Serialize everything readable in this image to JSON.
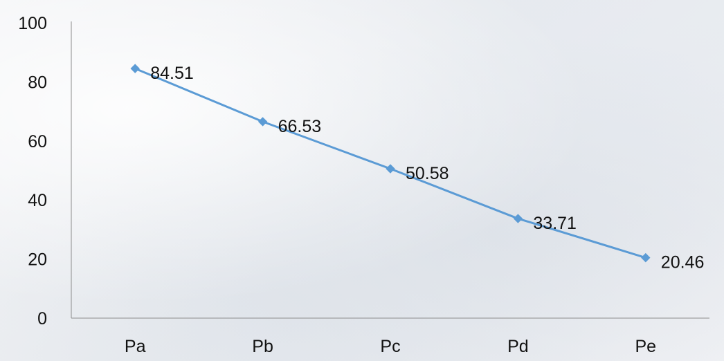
{
  "chart_data": {
    "type": "line",
    "categories": [
      "Pa",
      "Pb",
      "Pc",
      "Pd",
      "Pe"
    ],
    "values": [
      84.51,
      66.53,
      50.58,
      33.71,
      20.46
    ],
    "data_labels": [
      "84.51",
      "66.53",
      "50.58",
      "33.71",
      "20.46"
    ],
    "ylim": [
      0,
      100
    ],
    "yticks": [
      0,
      20,
      40,
      60,
      80,
      100
    ],
    "ytick_labels": [
      "0",
      "20",
      "40",
      "60",
      "80",
      "100"
    ],
    "title": "",
    "xlabel": "",
    "ylabel": "",
    "grid": false,
    "legend": "none",
    "line_color": "#5b9bd5",
    "marker": "diamond"
  }
}
